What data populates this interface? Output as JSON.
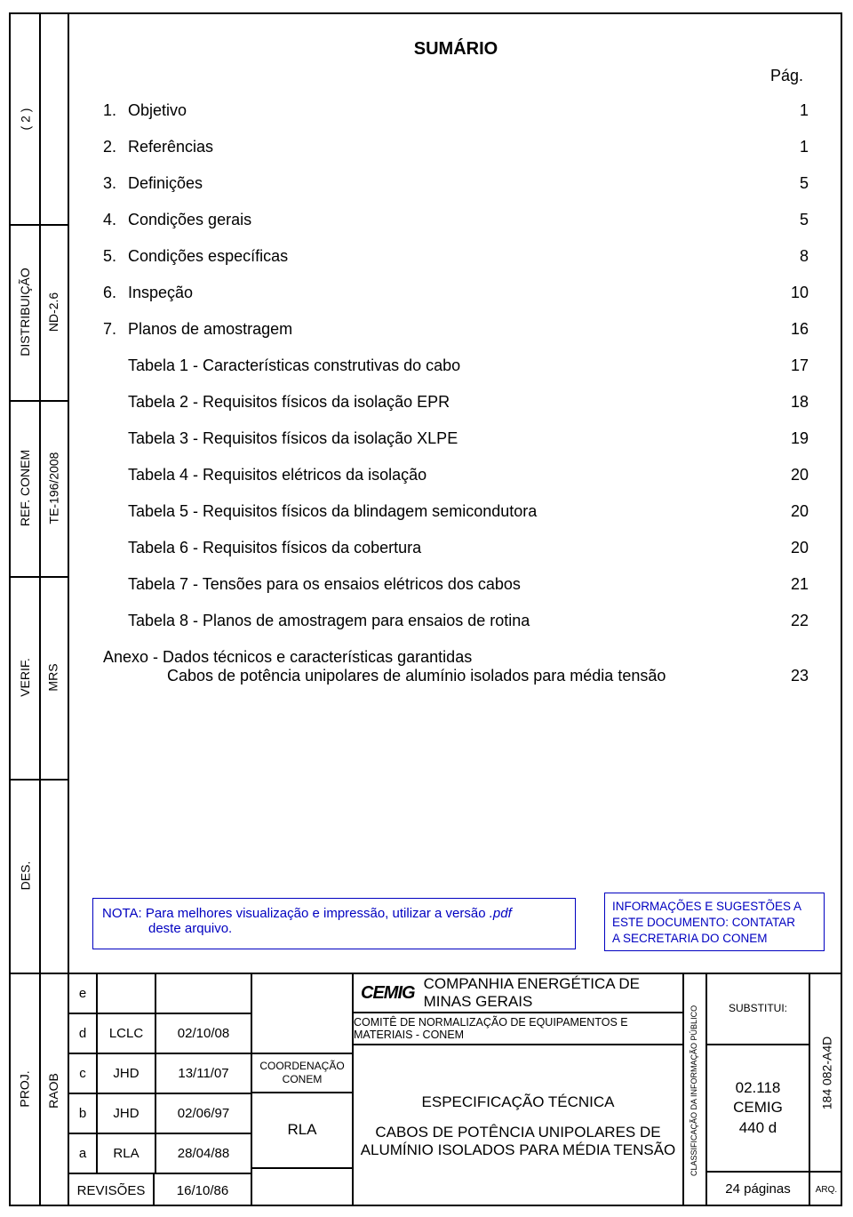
{
  "colors": {
    "text": "#000000",
    "accent": "#0000c0",
    "border": "#000000",
    "background": "#ffffff"
  },
  "side_labels": {
    "page": "( 2 )",
    "dist": "DISTRIBUIÇÃO",
    "ref": "REF. CONEM",
    "verif": "VERIF.",
    "des": "DES.",
    "proj": "PROJ."
  },
  "side_inner": {
    "nd": "ND-2.6",
    "te": "TE-196/2008",
    "mrs": "MRS",
    "raob": "RAOB"
  },
  "sumario": {
    "title": "SUMÁRIO",
    "page_label": "Pág.",
    "items": [
      {
        "num": "1.",
        "label": "Objetivo",
        "page": "1"
      },
      {
        "num": "2.",
        "label": "Referências",
        "page": "1"
      },
      {
        "num": "3.",
        "label": "Definições",
        "page": "5"
      },
      {
        "num": "4.",
        "label": "Condições gerais",
        "page": "5"
      },
      {
        "num": "5.",
        "label": "Condições específicas",
        "page": "8"
      },
      {
        "num": "6.",
        "label": "Inspeção",
        "page": "10"
      },
      {
        "num": "7.",
        "label": "Planos de amostragem",
        "page": "16"
      },
      {
        "num": "",
        "label": "Tabela 1 - Características construtivas do cabo",
        "page": "17"
      },
      {
        "num": "",
        "label": "Tabela 2 - Requisitos físicos da isolação EPR",
        "page": "18"
      },
      {
        "num": "",
        "label": "Tabela 3 - Requisitos físicos da isolação XLPE",
        "page": "19"
      },
      {
        "num": "",
        "label": "Tabela 4 - Requisitos elétricos da isolação",
        "page": "20"
      },
      {
        "num": "",
        "label": "Tabela 5 - Requisitos físicos da blindagem semicondutora",
        "page": "20"
      },
      {
        "num": "",
        "label": "Tabela 6 - Requisitos físicos da cobertura",
        "page": "20"
      },
      {
        "num": "",
        "label": "Tabela 7 - Tensões para os ensaios elétricos dos cabos",
        "page": "21"
      },
      {
        "num": "",
        "label": "Tabela 8 - Planos de amostragem para ensaios de rotina",
        "page": "22"
      }
    ],
    "annex": {
      "line1": "Anexo - Dados técnicos e características garantidas",
      "line2": "Cabos de potência unipolares de alumínio isolados para média tensão",
      "page": "23"
    }
  },
  "nota": {
    "prefix": "NOTA: Para melhores visualização e impressão, utilizar a versão ",
    "pdf": ".pdf",
    "suffix": "deste arquivo."
  },
  "info": {
    "l1": "INFORMAÇÕES E SUGESTÕES A",
    "l2": "ESTE DOCUMENTO: CONTATAR",
    "l3": "A SECRETARIA DO CONEM"
  },
  "revisions": {
    "rows": [
      {
        "rev": "e",
        "by": "",
        "date": ""
      },
      {
        "rev": "d",
        "by": "LCLC",
        "date": "02/10/08"
      },
      {
        "rev": "c",
        "by": "JHD",
        "date": "13/11/07"
      },
      {
        "rev": "b",
        "by": "JHD",
        "date": "02/06/97"
      },
      {
        "rev": "a",
        "by": "RLA",
        "date": "28/04/88"
      }
    ],
    "footer_label": "REVISÕES",
    "footer_date": "16/10/86"
  },
  "approval": {
    "coord_l1": "COORDENAÇÃO",
    "coord_l2": "CONEM",
    "rla": "RLA"
  },
  "center": {
    "logo": "CEMIG",
    "company": "COMPANHIA ENERGÉTICA DE MINAS GERAIS",
    "committee": "COMITÊ DE NORMALIZAÇÃO DE EQUIPAMENTOS E MATERIAIS - CONEM",
    "doc_type": "ESPECIFICAÇÃO TÉCNICA",
    "title_l1": "CABOS DE POTÊNCIA UNIPOLARES DE",
    "title_l2": "ALUMÍNIO ISOLADOS PARA MÉDIA TENSÃO"
  },
  "classification": "CLASSIFICAÇÃO DA INFORMAÇÃO PÚBLICO",
  "right": {
    "substitui": "SUBSTITUI:",
    "code_l1": "02.118",
    "code_l2": "CEMIG",
    "code_l3": "440 d",
    "pages": "24 páginas"
  },
  "far_right": {
    "drawing": "184 082-A4D",
    "arq": "ARQ."
  }
}
